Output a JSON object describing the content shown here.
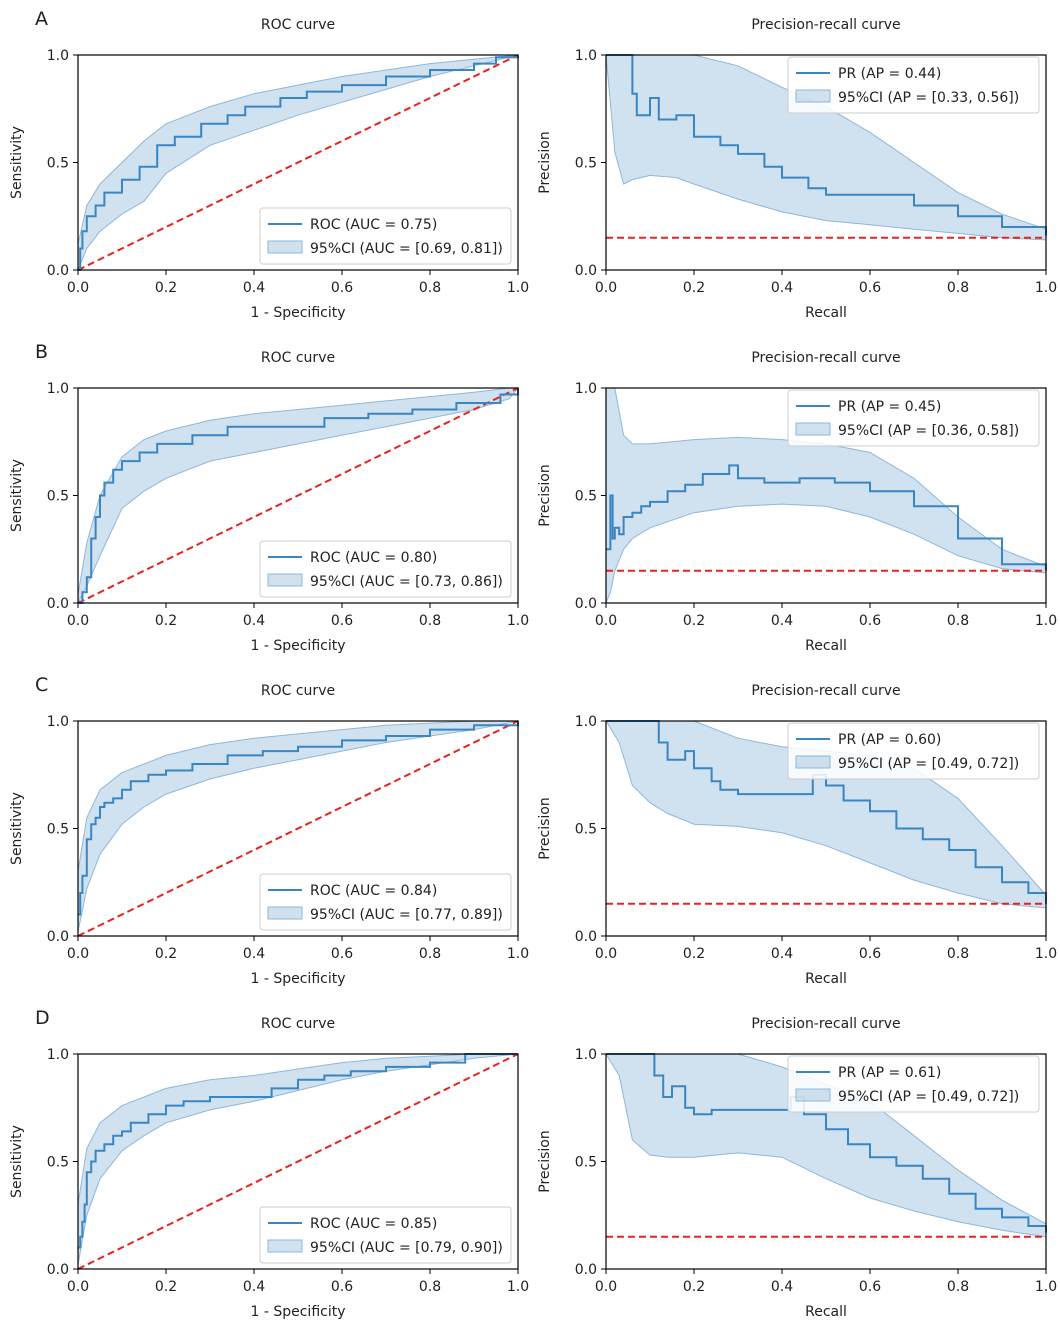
{
  "panels": [
    "A",
    "B",
    "C",
    "D"
  ],
  "colors": {
    "curve": "#3a86c2",
    "band": "#a9c9e3",
    "band_edge": "#8fb7da",
    "chance": "#e8231e",
    "axis": "#000000"
  },
  "chart_data": [
    {
      "panel": "A",
      "type": "line",
      "title": "ROC curve",
      "xlabel": "1 - Specificity",
      "ylabel": "Sensitivity",
      "xlim": [
        0,
        1
      ],
      "ylim": [
        0,
        1
      ],
      "xticks": [
        "0.0",
        "0.2",
        "0.4",
        "0.6",
        "0.8",
        "1.0"
      ],
      "yticks": [
        "0.0",
        "0.5",
        "1.0"
      ],
      "legend_position": "lower-right",
      "legend": [
        "ROC (AUC = 0.75)",
        "95%CI (AUC = [0.69, 0.81])"
      ],
      "series": [
        {
          "x": [
            0,
            0.005,
            0.01,
            0.02,
            0.04,
            0.06,
            0.1,
            0.14,
            0.18,
            0.22,
            0.28,
            0.34,
            0.38,
            0.46,
            0.52,
            0.6,
            0.7,
            0.8,
            0.9,
            0.95,
            1.0
          ],
          "y": [
            0,
            0.1,
            0.18,
            0.25,
            0.3,
            0.36,
            0.42,
            0.48,
            0.58,
            0.62,
            0.68,
            0.72,
            0.76,
            0.8,
            0.83,
            0.86,
            0.9,
            0.93,
            0.96,
            0.99,
            1.0
          ]
        }
      ],
      "ci_band": {
        "x": [
          0,
          0.02,
          0.05,
          0.1,
          0.15,
          0.2,
          0.3,
          0.4,
          0.5,
          0.6,
          0.7,
          0.8,
          0.9,
          1.0
        ],
        "lower": [
          0,
          0.1,
          0.18,
          0.26,
          0.32,
          0.45,
          0.58,
          0.65,
          0.72,
          0.78,
          0.84,
          0.9,
          0.95,
          1.0
        ],
        "upper": [
          0.12,
          0.3,
          0.4,
          0.5,
          0.6,
          0.68,
          0.76,
          0.82,
          0.86,
          0.9,
          0.93,
          0.96,
          0.98,
          1.0
        ]
      },
      "chance_line": {
        "x": [
          0,
          1
        ],
        "y": [
          0,
          1
        ]
      }
    },
    {
      "panel": "A",
      "type": "line",
      "title": "Precision-recall curve",
      "xlabel": "Recall",
      "ylabel": "Precision",
      "xlim": [
        0,
        1
      ],
      "ylim": [
        0,
        1
      ],
      "xticks": [
        "0.0",
        "0.2",
        "0.4",
        "0.6",
        "0.8",
        "1.0"
      ],
      "yticks": [
        "0.0",
        "0.5",
        "1.0"
      ],
      "legend_position": "top-right",
      "legend": [
        "PR (AP = 0.44)",
        "95%CI (AP = [0.33, 0.56])"
      ],
      "series": [
        {
          "x": [
            0,
            0.055,
            0.06,
            0.07,
            0.1,
            0.12,
            0.16,
            0.2,
            0.26,
            0.3,
            0.36,
            0.4,
            0.46,
            0.5,
            0.6,
            0.7,
            0.8,
            0.9,
            1.0
          ],
          "y": [
            1.0,
            1.0,
            0.82,
            0.72,
            0.8,
            0.7,
            0.72,
            0.62,
            0.58,
            0.54,
            0.48,
            0.43,
            0.38,
            0.35,
            0.35,
            0.3,
            0.25,
            0.2,
            0.16
          ]
        }
      ],
      "ci_band": {
        "x": [
          0,
          0.02,
          0.04,
          0.06,
          0.1,
          0.16,
          0.2,
          0.3,
          0.4,
          0.5,
          0.6,
          0.7,
          0.8,
          0.9,
          1.0
        ],
        "lower": [
          1.0,
          0.55,
          0.4,
          0.42,
          0.44,
          0.43,
          0.4,
          0.33,
          0.27,
          0.23,
          0.21,
          0.19,
          0.17,
          0.15,
          0.14
        ],
        "upper": [
          1.0,
          1.0,
          1.0,
          1.0,
          1.0,
          1.0,
          1.0,
          0.95,
          0.85,
          0.76,
          0.64,
          0.5,
          0.36,
          0.26,
          0.19
        ]
      },
      "chance_line": {
        "x": [
          0,
          1
        ],
        "y": [
          0.15,
          0.15
        ]
      }
    },
    {
      "panel": "B",
      "type": "line",
      "title": "ROC curve",
      "xlabel": "1 - Specificity",
      "ylabel": "Sensitivity",
      "xlim": [
        0,
        1
      ],
      "ylim": [
        0,
        1
      ],
      "xticks": [
        "0.0",
        "0.2",
        "0.4",
        "0.6",
        "0.8",
        "1.0"
      ],
      "yticks": [
        "0.0",
        "0.5",
        "1.0"
      ],
      "legend_position": "lower-right",
      "legend": [
        "ROC (AUC = 0.80)",
        "95%CI (AUC = [0.73, 0.86])"
      ],
      "series": [
        {
          "x": [
            0,
            0.01,
            0.02,
            0.03,
            0.04,
            0.05,
            0.06,
            0.08,
            0.1,
            0.14,
            0.18,
            0.26,
            0.34,
            0.42,
            0.56,
            0.66,
            0.76,
            0.86,
            0.96,
            1.0
          ],
          "y": [
            0,
            0.05,
            0.12,
            0.3,
            0.4,
            0.5,
            0.56,
            0.62,
            0.66,
            0.7,
            0.74,
            0.78,
            0.82,
            0.82,
            0.86,
            0.88,
            0.9,
            0.93,
            0.97,
            1.0
          ]
        }
      ],
      "ci_band": {
        "x": [
          0,
          0.02,
          0.05,
          0.1,
          0.15,
          0.2,
          0.3,
          0.4,
          0.5,
          0.6,
          0.7,
          0.8,
          0.9,
          0.98,
          1.0
        ],
        "lower": [
          0,
          0.08,
          0.22,
          0.44,
          0.52,
          0.58,
          0.66,
          0.7,
          0.74,
          0.78,
          0.82,
          0.86,
          0.9,
          0.95,
          1.0
        ],
        "upper": [
          0.04,
          0.28,
          0.5,
          0.68,
          0.76,
          0.8,
          0.85,
          0.88,
          0.9,
          0.92,
          0.94,
          0.96,
          0.98,
          1.0,
          1.0
        ]
      },
      "chance_line": {
        "x": [
          0,
          1
        ],
        "y": [
          0,
          1
        ]
      }
    },
    {
      "panel": "B",
      "type": "line",
      "title": "Precision-recall curve",
      "xlabel": "Recall",
      "ylabel": "Precision",
      "xlim": [
        0,
        1
      ],
      "ylim": [
        0,
        1
      ],
      "xticks": [
        "0.0",
        "0.2",
        "0.4",
        "0.6",
        "0.8",
        "1.0"
      ],
      "yticks": [
        "0.0",
        "0.5",
        "1.0"
      ],
      "legend_position": "top-right",
      "legend": [
        "PR (AP = 0.45)",
        "95%CI (AP = [0.36, 0.58])"
      ],
      "series": [
        {
          "x": [
            0,
            0.01,
            0.015,
            0.02,
            0.03,
            0.04,
            0.06,
            0.08,
            0.1,
            0.14,
            0.18,
            0.22,
            0.28,
            0.3,
            0.36,
            0.44,
            0.52,
            0.6,
            0.7,
            0.8,
            0.9,
            1.0
          ],
          "y": [
            0.25,
            0.5,
            0.3,
            0.35,
            0.32,
            0.4,
            0.42,
            0.45,
            0.47,
            0.52,
            0.55,
            0.6,
            0.64,
            0.58,
            0.56,
            0.58,
            0.56,
            0.52,
            0.45,
            0.3,
            0.18,
            0.15
          ]
        }
      ],
      "ci_band": {
        "x": [
          0,
          0.01,
          0.02,
          0.04,
          0.06,
          0.1,
          0.2,
          0.3,
          0.4,
          0.5,
          0.6,
          0.7,
          0.8,
          0.9,
          1.0
        ],
        "lower": [
          0,
          0.05,
          0.15,
          0.25,
          0.3,
          0.35,
          0.42,
          0.45,
          0.46,
          0.45,
          0.4,
          0.32,
          0.22,
          0.16,
          0.14
        ],
        "upper": [
          1.0,
          1.0,
          1.0,
          0.78,
          0.74,
          0.74,
          0.76,
          0.77,
          0.76,
          0.74,
          0.7,
          0.58,
          0.4,
          0.25,
          0.17
        ]
      },
      "chance_line": {
        "x": [
          0,
          1
        ],
        "y": [
          0.15,
          0.15
        ]
      }
    },
    {
      "panel": "C",
      "type": "line",
      "title": "ROC curve",
      "xlabel": "1 - Specificity",
      "ylabel": "Sensitivity",
      "xlim": [
        0,
        1
      ],
      "ylim": [
        0,
        1
      ],
      "xticks": [
        "0.0",
        "0.2",
        "0.4",
        "0.6",
        "0.8",
        "1.0"
      ],
      "yticks": [
        "0.0",
        "0.5",
        "1.0"
      ],
      "legend_position": "lower-right",
      "legend": [
        "ROC (AUC = 0.84)",
        "95%CI (AUC = [0.77, 0.89])"
      ],
      "series": [
        {
          "x": [
            0,
            0.005,
            0.01,
            0.02,
            0.03,
            0.04,
            0.05,
            0.06,
            0.08,
            0.1,
            0.12,
            0.16,
            0.2,
            0.26,
            0.34,
            0.42,
            0.5,
            0.6,
            0.7,
            0.8,
            0.9,
            1.0
          ],
          "y": [
            0.1,
            0.2,
            0.28,
            0.45,
            0.52,
            0.55,
            0.6,
            0.62,
            0.64,
            0.68,
            0.72,
            0.75,
            0.77,
            0.8,
            0.84,
            0.86,
            0.88,
            0.91,
            0.93,
            0.96,
            0.98,
            1.0
          ]
        }
      ],
      "ci_band": {
        "x": [
          0,
          0.02,
          0.05,
          0.1,
          0.15,
          0.2,
          0.3,
          0.4,
          0.5,
          0.6,
          0.7,
          0.8,
          0.9,
          1.0
        ],
        "lower": [
          0.02,
          0.22,
          0.38,
          0.52,
          0.6,
          0.66,
          0.73,
          0.78,
          0.82,
          0.86,
          0.9,
          0.93,
          0.96,
          1.0
        ],
        "upper": [
          0.3,
          0.55,
          0.68,
          0.76,
          0.8,
          0.84,
          0.89,
          0.92,
          0.94,
          0.96,
          0.98,
          0.99,
          1.0,
          1.0
        ]
      },
      "chance_line": {
        "x": [
          0,
          1
        ],
        "y": [
          0,
          1
        ]
      }
    },
    {
      "panel": "C",
      "type": "line",
      "title": "Precision-recall curve",
      "xlabel": "Recall",
      "ylabel": "Precision",
      "xlim": [
        0,
        1
      ],
      "ylim": [
        0,
        1
      ],
      "xticks": [
        "0.0",
        "0.2",
        "0.4",
        "0.6",
        "0.8",
        "1.0"
      ],
      "yticks": [
        "0.0",
        "0.5",
        "1.0"
      ],
      "legend_position": "top-right",
      "legend": [
        "PR (AP = 0.60)",
        "95%CI (AP = [0.49, 0.72])"
      ],
      "series": [
        {
          "x": [
            0,
            0.11,
            0.12,
            0.14,
            0.18,
            0.2,
            0.24,
            0.26,
            0.3,
            0.47,
            0.5,
            0.54,
            0.6,
            0.66,
            0.72,
            0.78,
            0.84,
            0.9,
            0.96,
            1.0
          ],
          "y": [
            1.0,
            1.0,
            0.9,
            0.82,
            0.86,
            0.78,
            0.72,
            0.68,
            0.66,
            0.75,
            0.7,
            0.63,
            0.58,
            0.5,
            0.45,
            0.4,
            0.32,
            0.25,
            0.2,
            0.15
          ]
        }
      ],
      "ci_band": {
        "x": [
          0,
          0.03,
          0.06,
          0.1,
          0.14,
          0.2,
          0.3,
          0.4,
          0.5,
          0.6,
          0.7,
          0.8,
          0.9,
          1.0
        ],
        "lower": [
          1.0,
          0.9,
          0.7,
          0.62,
          0.57,
          0.52,
          0.51,
          0.48,
          0.42,
          0.34,
          0.26,
          0.2,
          0.15,
          0.13
        ],
        "upper": [
          1.0,
          1.0,
          1.0,
          1.0,
          1.0,
          1.0,
          0.92,
          0.88,
          0.86,
          0.84,
          0.78,
          0.64,
          0.42,
          0.19
        ]
      },
      "chance_line": {
        "x": [
          0,
          1
        ],
        "y": [
          0.15,
          0.15
        ]
      }
    },
    {
      "panel": "D",
      "type": "line",
      "title": "ROC curve",
      "xlabel": "1 - Specificity",
      "ylabel": "Sensitivity",
      "xlim": [
        0,
        1
      ],
      "ylim": [
        0,
        1
      ],
      "xticks": [
        "0.0",
        "0.2",
        "0.4",
        "0.6",
        "0.8",
        "1.0"
      ],
      "yticks": [
        "0.0",
        "0.5",
        "1.0"
      ],
      "legend_position": "lower-right",
      "legend": [
        "ROC (AUC = 0.85)",
        "95%CI (AUC = [0.79, 0.90])"
      ],
      "series": [
        {
          "x": [
            0,
            0.005,
            0.01,
            0.015,
            0.02,
            0.03,
            0.04,
            0.06,
            0.08,
            0.1,
            0.12,
            0.16,
            0.2,
            0.24,
            0.3,
            0.36,
            0.44,
            0.5,
            0.56,
            0.62,
            0.7,
            0.8,
            0.88,
            1.0
          ],
          "y": [
            0.1,
            0.15,
            0.22,
            0.3,
            0.45,
            0.5,
            0.55,
            0.58,
            0.62,
            0.64,
            0.68,
            0.72,
            0.76,
            0.78,
            0.8,
            0.8,
            0.84,
            0.88,
            0.9,
            0.92,
            0.94,
            0.96,
            1.0,
            1.0
          ]
        }
      ],
      "ci_band": {
        "x": [
          0,
          0.02,
          0.05,
          0.1,
          0.15,
          0.2,
          0.3,
          0.4,
          0.5,
          0.6,
          0.7,
          0.8,
          0.9,
          1.0
        ],
        "lower": [
          0.02,
          0.25,
          0.42,
          0.55,
          0.62,
          0.68,
          0.74,
          0.78,
          0.83,
          0.88,
          0.92,
          0.95,
          0.98,
          1.0
        ],
        "upper": [
          0.3,
          0.56,
          0.68,
          0.76,
          0.8,
          0.84,
          0.88,
          0.9,
          0.93,
          0.96,
          0.98,
          0.99,
          1.0,
          1.0
        ]
      },
      "chance_line": {
        "x": [
          0,
          1
        ],
        "y": [
          0,
          1
        ]
      }
    },
    {
      "panel": "D",
      "type": "line",
      "title": "Precision-recall curve",
      "xlabel": "Recall",
      "ylabel": "Precision",
      "xlim": [
        0,
        1
      ],
      "ylim": [
        0,
        1
      ],
      "xticks": [
        "0.0",
        "0.2",
        "0.4",
        "0.6",
        "0.8",
        "1.0"
      ],
      "yticks": [
        "0.0",
        "0.5",
        "1.0"
      ],
      "legend_position": "top-right",
      "legend": [
        "PR (AP = 0.61)",
        "95%CI (AP = [0.49, 0.72])"
      ],
      "series": [
        {
          "x": [
            0,
            0.1,
            0.11,
            0.13,
            0.15,
            0.18,
            0.2,
            0.24,
            0.3,
            0.42,
            0.45,
            0.5,
            0.55,
            0.6,
            0.66,
            0.72,
            0.78,
            0.84,
            0.9,
            0.96,
            1.0
          ],
          "y": [
            1.0,
            1.0,
            0.9,
            0.8,
            0.85,
            0.75,
            0.72,
            0.74,
            0.74,
            0.8,
            0.72,
            0.65,
            0.58,
            0.52,
            0.48,
            0.42,
            0.35,
            0.28,
            0.24,
            0.2,
            0.17
          ]
        }
      ],
      "ci_band": {
        "x": [
          0,
          0.03,
          0.06,
          0.1,
          0.14,
          0.2,
          0.3,
          0.4,
          0.5,
          0.6,
          0.7,
          0.8,
          0.9,
          1.0
        ],
        "lower": [
          1.0,
          0.9,
          0.6,
          0.53,
          0.52,
          0.52,
          0.54,
          0.52,
          0.42,
          0.33,
          0.27,
          0.22,
          0.18,
          0.15
        ],
        "upper": [
          1.0,
          1.0,
          1.0,
          1.0,
          1.0,
          1.0,
          1.0,
          0.94,
          0.86,
          0.78,
          0.62,
          0.46,
          0.32,
          0.21
        ]
      },
      "chance_line": {
        "x": [
          0,
          1
        ],
        "y": [
          0.15,
          0.15
        ]
      }
    }
  ]
}
